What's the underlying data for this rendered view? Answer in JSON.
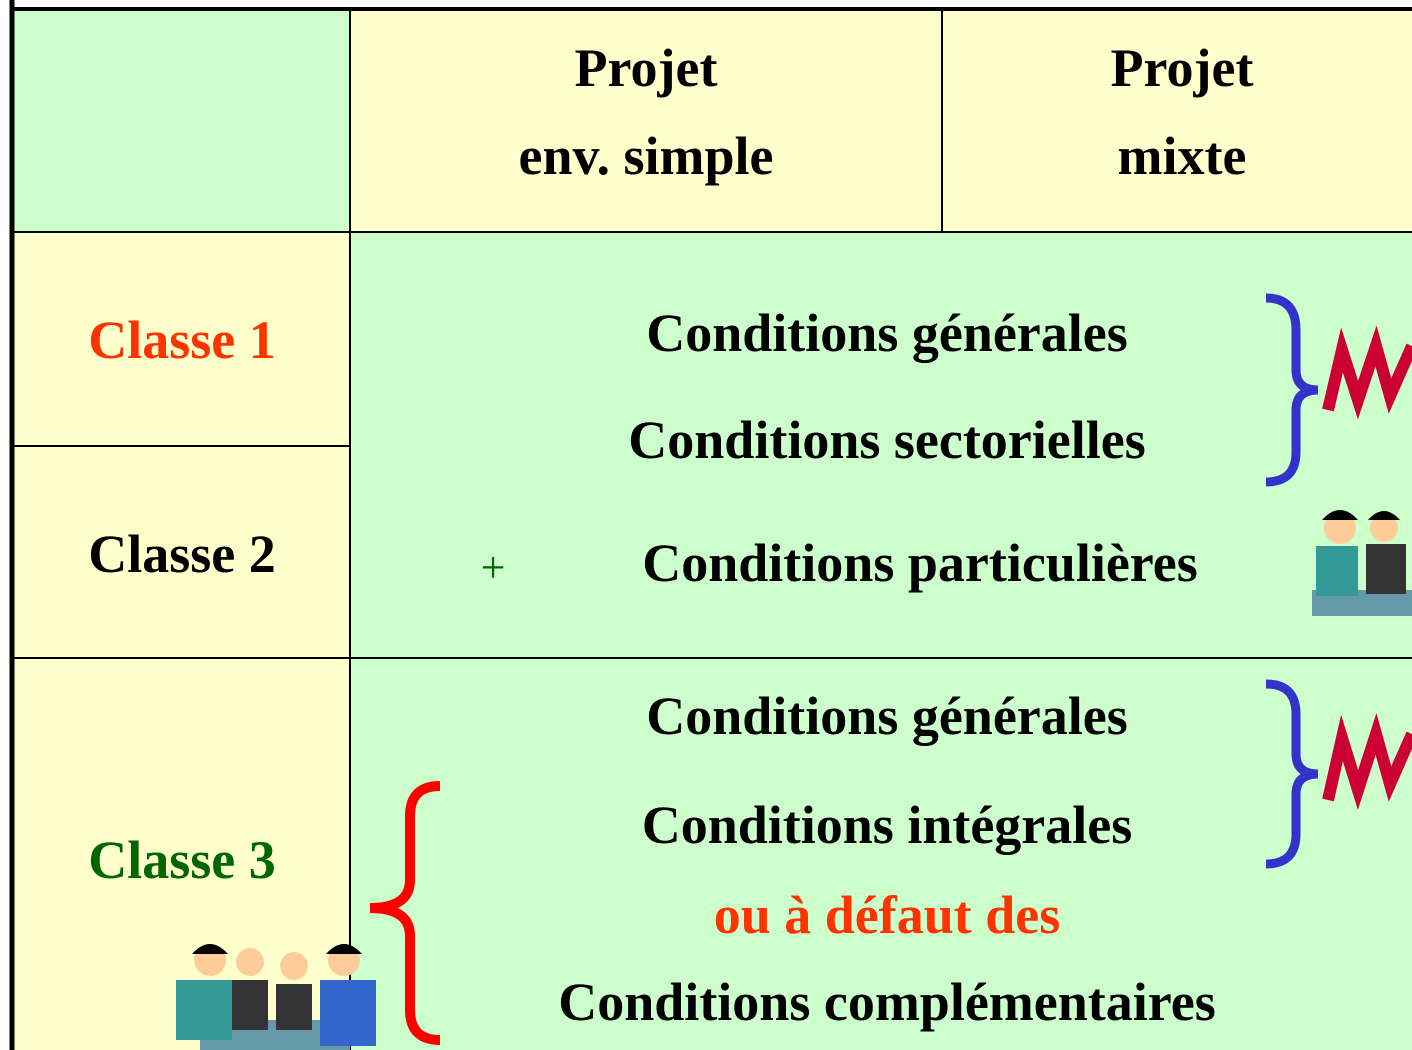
{
  "table": {
    "header": {
      "columns": [
        {
          "lines": [
            "Projet",
            "env. simple"
          ]
        },
        {
          "lines": [
            "Projet",
            "mixte"
          ]
        }
      ]
    },
    "rows": [
      {
        "label": "Classe 1"
      },
      {
        "label": "Classe 2"
      },
      {
        "label": "Classe 3"
      }
    ],
    "body": {
      "group_1": [
        "Conditions générales",
        "Conditions sectorielles"
      ],
      "plus": "+",
      "particular": "Conditions particulières",
      "group_2": [
        "Conditions générales",
        "Conditions intégrales"
      ],
      "alternative": "ou à défaut des",
      "complementary": "Conditions complémentaires"
    }
  }
}
